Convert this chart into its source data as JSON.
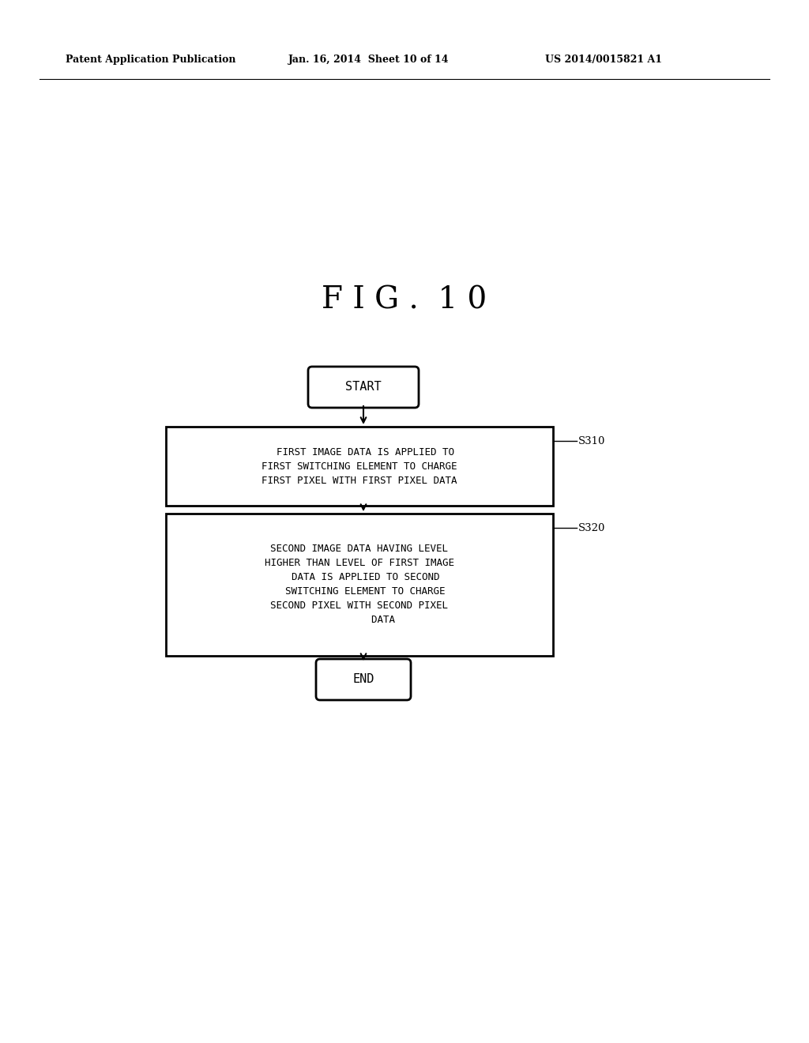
{
  "background_color": "#ffffff",
  "header_left": "Patent Application Publication",
  "header_mid": "Jan. 16, 2014  Sheet 10 of 14",
  "header_right": "US 2014/0015821 A1",
  "fig_title": "F I G .  1 0",
  "start_label": "START",
  "end_label": "END",
  "box1_line1": "  FIRST IMAGE DATA IS APPLIED TO",
  "box1_line2": "FIRST SWITCHING ELEMENT TO CHARGE",
  "box1_line3": "FIRST PIXEL WITH FIRST PIXEL DATA",
  "box1_label": "S310",
  "box2_line1": "SECOND IMAGE DATA HAVING LEVEL",
  "box2_line2": "HIGHER THAN LEVEL OF FIRST IMAGE",
  "box2_line3": "  DATA IS APPLIED TO SECOND",
  "box2_line4": "  SWITCHING ELEMENT TO CHARGE",
  "box2_line5": "SECOND PIXEL WITH SECOND PIXEL",
  "box2_line6": "        DATA",
  "box2_label": "S320",
  "line_color": "#000000",
  "text_color": "#000000"
}
